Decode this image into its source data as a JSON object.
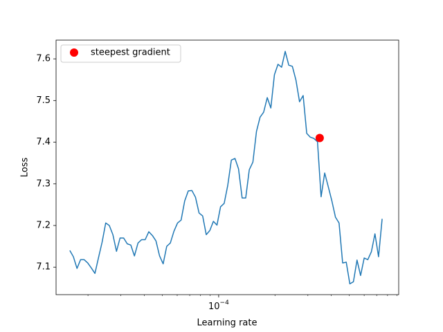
{
  "chart_data": {
    "type": "line",
    "xlabel": "Learning rate",
    "ylabel": "Loss",
    "xscale": "log",
    "x": [
      1.599e-05,
      1.671e-05,
      1.747e-05,
      1.826e-05,
      1.908e-05,
      1.994e-05,
      2.084e-05,
      2.179e-05,
      2.277e-05,
      2.38e-05,
      2.488e-05,
      2.6e-05,
      2.718e-05,
      2.841e-05,
      2.969e-05,
      3.103e-05,
      3.244e-05,
      3.39e-05,
      3.543e-05,
      3.704e-05,
      3.871e-05,
      4.046e-05,
      4.229e-05,
      4.42e-05,
      4.62e-05,
      4.829e-05,
      5.047e-05,
      5.275e-05,
      5.514e-05,
      5.763e-05,
      6.024e-05,
      6.296e-05,
      6.581e-05,
      6.878e-05,
      7.189e-05,
      7.514e-05,
      7.854e-05,
      8.209e-05,
      8.58e-05,
      8.968e-05,
      9.37e-05,
      9.793e-05,
      0.00010235,
      0.000107,
      0.0001118,
      0.0001169,
      0.0001222,
      0.0001277,
      0.0001335,
      0.0001395,
      0.0001458,
      0.0001524,
      0.0001593,
      0.0001665,
      0.000174,
      0.0001819,
      0.0001901,
      0.0001987,
      0.0002077,
      0.0002171,
      0.0002269,
      0.0002371,
      0.0002478,
      0.000259,
      0.0002707,
      0.000283,
      0.0002958,
      0.0003091,
      0.0003231,
      0.0003377,
      0.000353,
      0.000369,
      0.0003857,
      0.0004031,
      0.0004213,
      0.0004404,
      0.0004603,
      0.0004811,
      0.0005029,
      0.0005256,
      0.0005494,
      0.0005742,
      0.0006002,
      0.0006273,
      0.0006557,
      0.0006853,
      0.0007163,
      0.0007486
    ],
    "series": [
      {
        "color": "#1f77b4",
        "values": [
          7.14,
          7.125,
          7.097,
          7.118,
          7.118,
          7.11,
          7.098,
          7.085,
          7.123,
          7.16,
          7.206,
          7.2,
          7.178,
          7.138,
          7.17,
          7.17,
          7.156,
          7.153,
          7.127,
          7.158,
          7.166,
          7.166,
          7.185,
          7.176,
          7.163,
          7.127,
          7.108,
          7.15,
          7.158,
          7.186,
          7.206,
          7.213,
          7.259,
          7.283,
          7.284,
          7.268,
          7.23,
          7.223,
          7.178,
          7.188,
          7.21,
          7.201,
          7.245,
          7.253,
          7.296,
          7.357,
          7.361,
          7.336,
          7.266,
          7.266,
          7.334,
          7.352,
          7.426,
          7.46,
          7.472,
          7.507,
          7.482,
          7.562,
          7.587,
          7.58,
          7.618,
          7.585,
          7.582,
          7.549,
          7.497,
          7.512,
          7.421,
          7.412,
          7.409,
          7.401,
          7.269,
          7.326,
          7.293,
          7.259,
          7.22,
          7.206,
          7.11,
          7.112,
          7.06,
          7.065,
          7.117,
          7.08,
          7.122,
          7.118,
          7.137,
          7.18,
          7.125,
          7.216
        ]
      }
    ],
    "marker": {
      "name": "steepest gradient",
      "color": "#ff0000",
      "x": 0.000347,
      "y": 7.41
    },
    "xlim": [
      1.35e-05,
      0.000918
    ],
    "ylim": [
      7.034,
      7.645
    ],
    "xticks": [
      {
        "value": 0.0001,
        "label": "10−4"
      }
    ],
    "xminorticks": [
      2e-05,
      3e-05,
      4e-05,
      5e-05,
      6e-05,
      7e-05,
      8e-05,
      9e-05,
      0.0002,
      0.0003,
      0.0004,
      0.0005,
      0.0006,
      0.0007,
      0.0008,
      0.0009
    ],
    "yticks": [
      7.1,
      7.2,
      7.3,
      7.4,
      7.5,
      7.6
    ],
    "legend": "upper left"
  }
}
